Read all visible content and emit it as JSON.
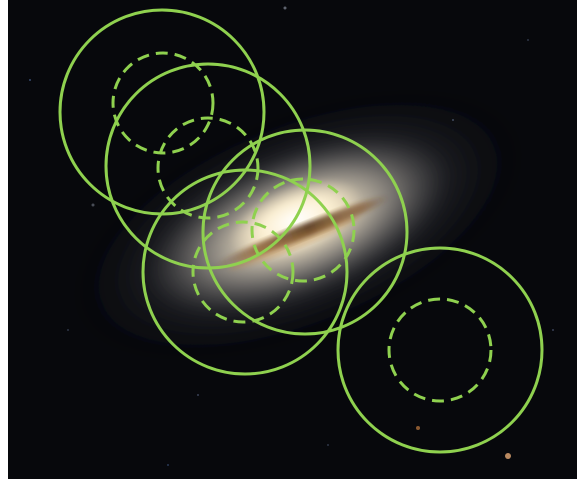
{
  "image": {
    "subject": "edge-on-galaxy-with-observation-apertures",
    "colors": {
      "background": "#ffffff",
      "sky": "#07080c",
      "galaxy_core": "#fff2d2",
      "galaxy_halo": "#8c8a88",
      "dust_lane": "#4a2a10",
      "aperture_outer": "#8fd14f",
      "aperture_inner": "#8fd14f"
    }
  },
  "apertures": [
    {
      "id": "1",
      "style": "solid-with-dashed-inner"
    },
    {
      "id": "2",
      "style": "solid-with-dashed-inner"
    },
    {
      "id": "3",
      "style": "solid-with-dashed-inner"
    },
    {
      "id": "4",
      "style": "solid-with-dashed-inner"
    },
    {
      "id": "5",
      "style": "solid-with-dashed-inner"
    }
  ]
}
